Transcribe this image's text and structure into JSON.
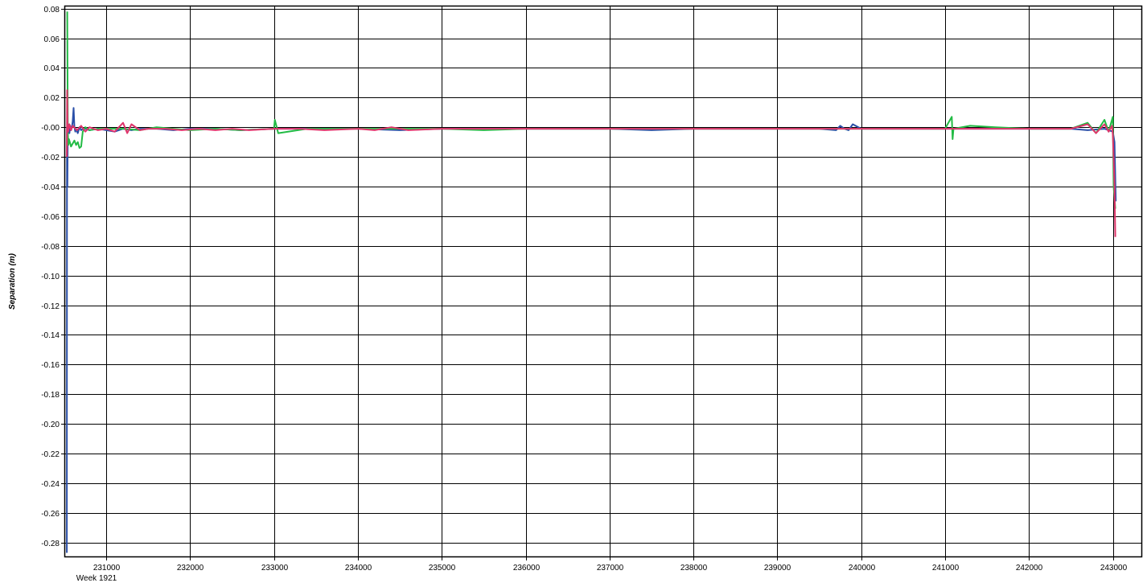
{
  "chart_data": {
    "type": "line",
    "title": "",
    "ylabel": "Separation (m)",
    "xlabel": "",
    "x_sublabel": "Week 1921",
    "xlim": [
      230500,
      243350
    ],
    "ylim": [
      -0.29,
      0.082
    ],
    "grid": true,
    "legend": "none",
    "x_ticks": [
      231000,
      232000,
      233000,
      234000,
      235000,
      236000,
      237000,
      238000,
      239000,
      240000,
      241000,
      242000,
      243000
    ],
    "x_tick_labels": [
      "231000",
      "232000",
      "233000",
      "234000",
      "235000",
      "236000",
      "237000",
      "238000",
      "239000",
      "240000",
      "241000",
      "242000",
      "243000"
    ],
    "y_ticks": [
      0.08,
      0.06,
      0.04,
      0.02,
      0.0,
      -0.02,
      -0.04,
      -0.06,
      -0.08,
      -0.1,
      -0.12,
      -0.14,
      -0.16,
      -0.18,
      -0.2,
      -0.22,
      -0.24,
      -0.26,
      -0.28
    ],
    "y_tick_labels": [
      "0.08",
      "0.06",
      "0.04",
      "0.02",
      "-0.00",
      "-0.02",
      "-0.04",
      "-0.06",
      "-0.08",
      "-0.10",
      "-0.12",
      "-0.14",
      "-0.16",
      "-0.18",
      "-0.20",
      "-0.22",
      "-0.24",
      "-0.26",
      "-0.28"
    ],
    "series": [
      {
        "color": "#2a4fa8",
        "x": [
          230530,
          230532,
          230536,
          230540,
          230545,
          230550,
          230555,
          230560,
          230570,
          230580,
          230590,
          230600,
          230610,
          230620,
          230630,
          230640,
          230660,
          230680,
          230700,
          230720,
          230750,
          230800,
          230900,
          231000,
          231100,
          231200,
          231300,
          231400,
          231600,
          231800,
          232000,
          232300,
          232600,
          233000,
          233400,
          234000,
          234500,
          235000,
          235500,
          236000,
          236500,
          237000,
          237500,
          238000,
          238500,
          239000,
          239500,
          239700,
          239750,
          239800,
          239850,
          239900,
          240000,
          240500,
          241000,
          241500,
          242000,
          242500,
          242700,
          242900,
          243000,
          243020,
          243035
        ],
        "y": [
          -0.287,
          0.0,
          -0.04,
          -0.005,
          0.002,
          -0.003,
          -0.001,
          -0.004,
          0.001,
          -0.002,
          0.0,
          0.004,
          0.013,
          0.0,
          -0.003,
          -0.001,
          -0.004,
          0.0,
          -0.002,
          -0.001,
          -0.001,
          -0.002,
          -0.001,
          -0.002,
          -0.003,
          -0.001,
          -0.002,
          -0.001,
          -0.001,
          -0.002,
          -0.001,
          -0.001,
          -0.002,
          -0.001,
          -0.001,
          -0.001,
          -0.002,
          -0.001,
          -0.001,
          -0.001,
          -0.001,
          -0.001,
          -0.002,
          -0.001,
          -0.001,
          -0.001,
          -0.001,
          -0.002,
          0.001,
          -0.001,
          -0.002,
          0.002,
          -0.001,
          -0.001,
          -0.001,
          -0.001,
          -0.001,
          -0.001,
          -0.002,
          -0.001,
          -0.003,
          -0.01,
          -0.05
        ]
      },
      {
        "color": "#22bb44",
        "x": [
          230535,
          230538,
          230542,
          230548,
          230555,
          230565,
          230580,
          230600,
          230620,
          230640,
          230660,
          230680,
          230700,
          230720,
          230750,
          230800,
          230900,
          231000,
          231200,
          231400,
          231600,
          231800,
          232000,
          232300,
          232600,
          233000,
          233010,
          233050,
          233400,
          234000,
          234500,
          235000,
          235500,
          236000,
          236500,
          237000,
          237500,
          238000,
          238500,
          239000,
          239500,
          240000,
          240500,
          241000,
          241080,
          241090,
          241100,
          241300,
          241600,
          242000,
          242500,
          242700,
          242800,
          242900,
          242950,
          243000,
          243010,
          243030
        ],
        "y": [
          0.078,
          0.03,
          -0.005,
          -0.012,
          -0.008,
          -0.01,
          -0.013,
          -0.011,
          -0.009,
          -0.012,
          -0.01,
          -0.014,
          -0.013,
          -0.003,
          0.0,
          -0.002,
          -0.001,
          -0.001,
          -0.001,
          -0.002,
          0.0,
          -0.001,
          -0.002,
          -0.001,
          -0.002,
          -0.001,
          0.005,
          -0.004,
          -0.001,
          -0.001,
          -0.001,
          -0.001,
          -0.002,
          -0.001,
          -0.001,
          -0.001,
          -0.001,
          -0.001,
          -0.001,
          -0.001,
          -0.001,
          -0.001,
          -0.001,
          -0.001,
          0.007,
          -0.008,
          -0.001,
          0.001,
          0.0,
          -0.001,
          -0.001,
          0.003,
          -0.004,
          0.005,
          -0.003,
          0.007,
          -0.04,
          -0.055
        ]
      },
      {
        "color": "#e0346b",
        "x": [
          230530,
          230534,
          230538,
          230545,
          230560,
          230580,
          230600,
          230650,
          230700,
          230750,
          230800,
          230900,
          231000,
          231100,
          231200,
          231250,
          231300,
          231400,
          231500,
          231700,
          231900,
          232100,
          232300,
          232500,
          232700,
          233000,
          233300,
          233600,
          234000,
          234200,
          234400,
          234600,
          235000,
          235500,
          236000,
          236500,
          237000,
          237500,
          238000,
          238500,
          239000,
          239500,
          240000,
          240500,
          241000,
          241500,
          242000,
          242500,
          242700,
          242800,
          242900,
          242950,
          242990,
          243000,
          243010,
          243020,
          243030
        ],
        "y": [
          -0.02,
          0.025,
          0.0,
          -0.003,
          0.002,
          -0.002,
          0.001,
          -0.002,
          0.001,
          -0.003,
          0.0,
          -0.002,
          -0.001,
          -0.003,
          0.003,
          -0.004,
          0.002,
          -0.002,
          -0.001,
          -0.001,
          -0.002,
          -0.001,
          -0.002,
          -0.001,
          -0.002,
          -0.001,
          -0.001,
          -0.002,
          -0.001,
          -0.002,
          0.0,
          -0.002,
          -0.001,
          -0.001,
          -0.001,
          -0.001,
          -0.001,
          -0.001,
          -0.001,
          -0.001,
          -0.001,
          -0.001,
          -0.001,
          -0.001,
          -0.001,
          -0.001,
          -0.001,
          -0.001,
          0.002,
          -0.004,
          0.002,
          -0.003,
          0.001,
          -0.005,
          -0.02,
          -0.04,
          -0.074
        ]
      }
    ]
  }
}
